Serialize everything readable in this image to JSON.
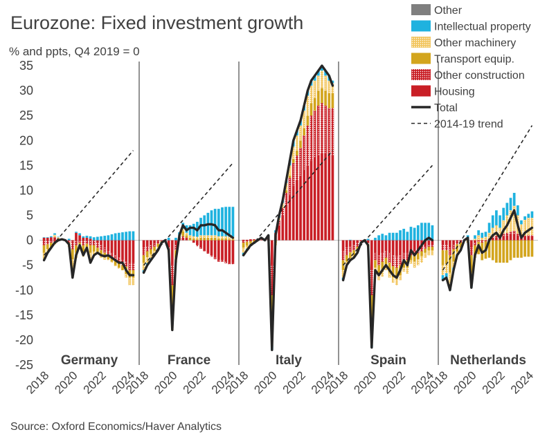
{
  "chart_data": {
    "type": "bar",
    "title": "Eurozone: Fixed investment growth",
    "subtitle": "% and ppts, Q4 2019 = 0",
    "source": "Source: Oxford Economics/Haver Analytics",
    "ylim": [
      -25,
      35
    ],
    "yticks": [
      "35",
      "30",
      "25",
      "20",
      "15",
      "10",
      "5",
      "0",
      "-5",
      "-10",
      "-15",
      "-20",
      "-25"
    ],
    "xticks": [
      "2018",
      "2020",
      "2022",
      "2024"
    ],
    "legend": [
      {
        "name": "Other",
        "color": "#7f7f7f",
        "kind": "solid"
      },
      {
        "name": "Intellectual property",
        "color": "#1fb2df",
        "kind": "solid"
      },
      {
        "name": "Other machinery",
        "color": "#f2c660",
        "kind": "dots"
      },
      {
        "name": "Transport equip.",
        "color": "#d3a51d",
        "kind": "solid"
      },
      {
        "name": "Other construction",
        "color": "#c91f26",
        "kind": "dots"
      },
      {
        "name": "Housing",
        "color": "#c91f26",
        "kind": "solid"
      },
      {
        "name": "Total",
        "color": "#262626",
        "kind": "line"
      },
      {
        "name": "2014-19 trend",
        "color": "#262626",
        "kind": "dash"
      }
    ],
    "panels": [
      {
        "name": "Germany",
        "total": [
          -4,
          -2.5,
          -1.5,
          -0.5,
          0,
          0.2,
          0,
          -0.8,
          -7.5,
          -3,
          -1,
          -3,
          -1.5,
          -4.5,
          -3,
          -2.5,
          -3,
          -3.2,
          -3,
          -3.5,
          -4,
          -4.5,
          -4.5,
          -6,
          -7,
          -7
        ],
        "trend": [
          -3,
          18
        ],
        "components": {
          "housing": [
            0.5,
            0.5,
            0.6,
            0.6,
            0.3,
            0.2,
            0,
            0,
            -0.3,
            1.5,
            1,
            0.5,
            0.5,
            0.3,
            0,
            -0.5,
            -1,
            -1.5,
            -2,
            -2.5,
            -3,
            -3.5,
            -4,
            -4.3,
            -4.5,
            -4.5
          ],
          "other_construction": [
            -1,
            -0.8,
            -0.5,
            -0.3,
            0,
            0,
            0,
            -0.5,
            -1.5,
            -1,
            -0.5,
            -1,
            -0.7,
            -1,
            -1,
            -1,
            -1,
            -1,
            -1,
            -1,
            -1,
            -1,
            -1,
            -1,
            -1.5,
            -1.5
          ],
          "transport": [
            -1.5,
            -1,
            -0.8,
            -0.5,
            -0.2,
            0,
            0,
            -0.5,
            -2,
            -1.5,
            -1,
            -1.5,
            -1,
            -1.5,
            -1.3,
            -1,
            -1,
            -1,
            -0.8,
            -0.8,
            -1,
            -1,
            -1,
            -1.5,
            -1.5,
            -1.5
          ],
          "machinery": [
            -1.3,
            -0.8,
            -0.3,
            0.5,
            0.3,
            0.2,
            0,
            -0.3,
            -3.5,
            -1,
            0,
            -0.8,
            0,
            -1.2,
            -0.5,
            -0.3,
            -0.5,
            -0.4,
            -0.2,
            -0.2,
            -0.2,
            -0.2,
            0,
            -0.7,
            -1.5,
            -1.5
          ],
          "ip": [
            0.1,
            0.1,
            0.2,
            0.3,
            0.1,
            0,
            0,
            0.3,
            0,
            0.2,
            0.4,
            0.3,
            0.4,
            0.5,
            0.6,
            0.7,
            0.8,
            0.9,
            1,
            1.2,
            1.4,
            1.5,
            1.6,
            1.7,
            1.8,
            1.8
          ],
          "other": [
            0,
            0,
            0,
            0,
            0,
            0,
            0,
            0,
            0,
            0,
            0,
            0,
            0,
            0,
            0,
            0,
            0,
            0,
            0,
            0,
            0,
            0,
            0,
            0,
            0,
            0
          ]
        }
      },
      {
        "name": "France",
        "total": [
          -6.5,
          -5,
          -4,
          -3,
          -2,
          -0.5,
          0,
          -2,
          -18,
          -4,
          1,
          3,
          2,
          2.5,
          2.5,
          2,
          3,
          3,
          3.2,
          3.2,
          3,
          2,
          2,
          1.5,
          1,
          0.5
        ],
        "trend": [
          -5,
          15.5
        ],
        "components": {
          "housing": [
            -1.5,
            -1.2,
            -1,
            -0.7,
            -0.3,
            -0.1,
            0,
            -1.5,
            -5,
            -1,
            0.5,
            0.5,
            0.3,
            0,
            -0.5,
            -1,
            -1.5,
            -2,
            -2.5,
            -3,
            -3.5,
            -4,
            -4,
            -4.3,
            -4.5,
            -4.5
          ],
          "other_construction": [
            -1.5,
            -1,
            -0.8,
            -0.6,
            -0.4,
            -0.1,
            0,
            -0.5,
            -4,
            -1,
            0,
            0.3,
            0.2,
            0,
            0,
            -0.2,
            -0.2,
            -0.2,
            -0.2,
            -0.3,
            -0.3,
            -0.3,
            -0.3,
            -0.3,
            -0.3,
            -0.3
          ],
          "transport": [
            -1.5,
            -1.2,
            -1,
            -0.8,
            -0.6,
            -0.2,
            0,
            -0.3,
            -5,
            -1.5,
            0.3,
            1,
            0.5,
            0.5,
            0.3,
            0.2,
            0.5,
            0.5,
            0.5,
            0.5,
            0.5,
            0.3,
            0.3,
            0.3,
            0.2,
            0.2
          ],
          "machinery": [
            -1.5,
            -1.2,
            -0.8,
            -0.5,
            -0.4,
            -0.1,
            0,
            -0.2,
            -4,
            -1,
            0,
            0.5,
            0.5,
            0.5,
            0.5,
            0.5,
            0.5,
            0.5,
            0.5,
            0.5,
            0.5,
            0.5,
            0.5,
            0.5,
            0.5,
            0.5
          ],
          "ip": [
            -0.5,
            -0.4,
            -0.4,
            -0.4,
            -0.3,
            0,
            0,
            0.5,
            0,
            0.5,
            0.8,
            1.2,
            1.5,
            2,
            2.5,
            3,
            3.5,
            4,
            4.5,
            5,
            5.3,
            5.5,
            5.8,
            5.9,
            6,
            6
          ],
          "other": [
            0,
            0,
            0,
            0,
            0,
            0,
            0,
            0,
            0,
            0,
            0,
            0,
            0,
            0,
            0,
            0,
            0,
            0,
            0,
            0,
            0,
            0,
            0,
            0,
            0,
            0
          ]
        }
      },
      {
        "name": "Italy",
        "total": [
          -3,
          -2,
          -1,
          -0.5,
          0,
          0.5,
          0,
          1,
          -22,
          1,
          5,
          8,
          12,
          16,
          20,
          22,
          24,
          27,
          30,
          32,
          33,
          34,
          35,
          34,
          33,
          31
        ],
        "trend": [
          -3,
          18
        ],
        "components": {
          "housing": [
            0.1,
            0.1,
            0.2,
            0.2,
            0.1,
            0,
            0,
            0.5,
            -5,
            1,
            3,
            5,
            7,
            9,
            11,
            12,
            13,
            14,
            15,
            16,
            16.5,
            17,
            17.5,
            17.5,
            17,
            17
          ],
          "other_construction": [
            -0.5,
            -0.3,
            -0.2,
            0,
            0,
            0.2,
            0,
            0.3,
            -6,
            0.5,
            1,
            1.5,
            2.5,
            3.5,
            4.5,
            5,
            5.5,
            7,
            8,
            9,
            9.5,
            10,
            10,
            9.5,
            9.5,
            9.5
          ],
          "transport": [
            -1,
            -0.8,
            -0.5,
            -0.3,
            0,
            0.1,
            0,
            0,
            -5,
            -0.5,
            0,
            0,
            0.5,
            0.5,
            0.8,
            1,
            1.5,
            1.5,
            2,
            2.5,
            2.5,
            3,
            3,
            3,
            3,
            3
          ],
          "machinery": [
            -1,
            -0.6,
            -0.3,
            -0.2,
            -0.1,
            0,
            0,
            0,
            -5,
            -0.5,
            0.5,
            1,
            1.5,
            2,
            2.5,
            3,
            3,
            3.5,
            4,
            3.5,
            3.5,
            3,
            3.5,
            3,
            2.5,
            2
          ],
          "ip": [
            -0.6,
            -0.4,
            -0.2,
            -0.2,
            0,
            0.2,
            0,
            0.2,
            -1,
            0.5,
            0.5,
            0.5,
            0.5,
            1,
            1.2,
            1,
            1,
            1,
            1,
            1,
            1,
            1,
            1,
            1,
            1,
            0.5
          ],
          "other": [
            0,
            0,
            0,
            0,
            0,
            0,
            0,
            0,
            0,
            0,
            0,
            0,
            0,
            0,
            0,
            0,
            0,
            0,
            0,
            0,
            0,
            0,
            0,
            0,
            0,
            0
          ]
        }
      },
      {
        "name": "Spain",
        "total": [
          -8,
          -5,
          -4,
          -3.5,
          -2.5,
          -0.5,
          0,
          -1,
          -21.5,
          -6,
          -7,
          -6,
          -5,
          -6,
          -7,
          -7.5,
          -6,
          -4,
          -5,
          -2,
          -3,
          -2,
          -1,
          0,
          0.5,
          0
        ],
        "trend": [
          -5,
          15
        ],
        "components": {
          "housing": [
            -2,
            -1.5,
            -1.2,
            -1,
            -0.5,
            -0.2,
            0,
            -0.5,
            -6,
            -2.5,
            -3,
            -2.5,
            -2,
            -2.5,
            -3,
            -3.2,
            -3,
            -2.5,
            -2.5,
            -2,
            -2,
            -1.8,
            -1.5,
            -1.2,
            -1,
            -1
          ],
          "other_construction": [
            -2,
            -1.5,
            -1.2,
            -1,
            -0.8,
            -0.2,
            0,
            -0.3,
            -5,
            -1.5,
            -2,
            -1.8,
            -1.5,
            -2,
            -2.2,
            -2.3,
            -2,
            -1.5,
            -1.5,
            -1,
            -1,
            -0.8,
            -0.7,
            -0.5,
            -0.3,
            -0.3
          ],
          "transport": [
            -2,
            -1.3,
            -1.2,
            -1,
            -0.8,
            -0.1,
            0,
            -0.5,
            -5,
            -1.5,
            -2,
            -2,
            -1.5,
            -2,
            -2.2,
            -2.3,
            -2,
            -1.5,
            -1.5,
            -1,
            -1.3,
            -1.2,
            -1,
            -0.8,
            -0.7,
            -0.7
          ],
          "machinery": [
            -1.5,
            -0.7,
            -0.5,
            -0.5,
            -0.4,
            0,
            0,
            0,
            -5,
            -1,
            -1,
            -1,
            -1,
            -1,
            -1.1,
            -1.2,
            -1,
            -0.8,
            -1.2,
            -0.7,
            -1.2,
            -1.2,
            -1.3,
            -1,
            -1,
            -1
          ],
          "ip": [
            -0.5,
            0,
            0.1,
            0,
            0,
            0,
            0,
            0.3,
            -0.5,
            0.5,
            1,
            1.3,
            1,
            1.5,
            1.5,
            1.5,
            2,
            2.3,
            1.7,
            2.7,
            2.5,
            3,
            3.5,
            3.5,
            3.5,
            3
          ],
          "other": [
            0,
            0,
            0,
            0,
            0,
            0,
            0,
            0,
            0,
            0,
            0,
            0,
            0,
            0,
            0,
            0,
            0,
            0,
            0,
            0,
            0,
            0,
            0,
            0,
            0,
            0
          ]
        }
      },
      {
        "name": "Netherlands",
        "total": [
          -8,
          -7.5,
          -10,
          -6,
          -3,
          -2,
          0,
          0.5,
          -9.5,
          -3,
          -1,
          -2.5,
          -2,
          0,
          1,
          1.5,
          0.5,
          2,
          3,
          4.5,
          6,
          3,
          0.5,
          1.5,
          2,
          2.5
        ],
        "trend": [
          -6,
          23
        ],
        "components": {
          "housing": [
            -1,
            -1,
            -1.5,
            -0.8,
            -0.3,
            -0.2,
            0,
            0.2,
            -1.5,
            -0.5,
            0,
            -0.2,
            0,
            0.3,
            0.5,
            0.6,
            0.5,
            0.8,
            1,
            1.2,
            1.3,
            1,
            0.5,
            0.7,
            0.8,
            0.8
          ],
          "other_construction": [
            -1,
            -1,
            -1.5,
            -1,
            -0.5,
            -0.3,
            0,
            0,
            -1.5,
            -0.5,
            -0.3,
            -0.3,
            -0.2,
            0,
            0.3,
            0.3,
            0.2,
            0.5,
            0.5,
            0.5,
            0.6,
            0.3,
            0.2,
            0.2,
            0.2,
            0.2
          ],
          "transport": [
            -3,
            -2.8,
            -3.5,
            -2.5,
            -1.5,
            -1,
            0,
            -0.5,
            -3.5,
            -2.5,
            -2.5,
            -3.5,
            -3.5,
            -3.5,
            -4,
            -4.5,
            -4.5,
            -4.5,
            -4.5,
            -4,
            -3.5,
            -3.5,
            -3.5,
            -3.3,
            -3.3,
            -3.3
          ],
          "machinery": [
            -2,
            -1.8,
            -2.5,
            -1.2,
            -0.5,
            -0.3,
            0,
            0,
            -2.5,
            0.3,
            1,
            0.5,
            0.7,
            1.2,
            1.7,
            2.1,
            1.8,
            2.7,
            3.5,
            4.3,
            5,
            3.7,
            2.5,
            3.2,
            3.5,
            3.5
          ],
          "ip": [
            -1,
            -0.9,
            -1,
            -0.5,
            -0.2,
            -0.2,
            0,
            0.8,
            -0.5,
            0.7,
            1,
            1,
            1,
            2,
            2.5,
            3,
            2.5,
            2.5,
            2.5,
            2.5,
            2.6,
            2,
            0.8,
            0.7,
            0.8,
            1.3
          ],
          "other": [
            0,
            0,
            0,
            0,
            0,
            0,
            0,
            0,
            0,
            0,
            0,
            0,
            0,
            0,
            0,
            0,
            0,
            0,
            0,
            0,
            0,
            0,
            0,
            0,
            0,
            0
          ]
        }
      }
    ]
  }
}
